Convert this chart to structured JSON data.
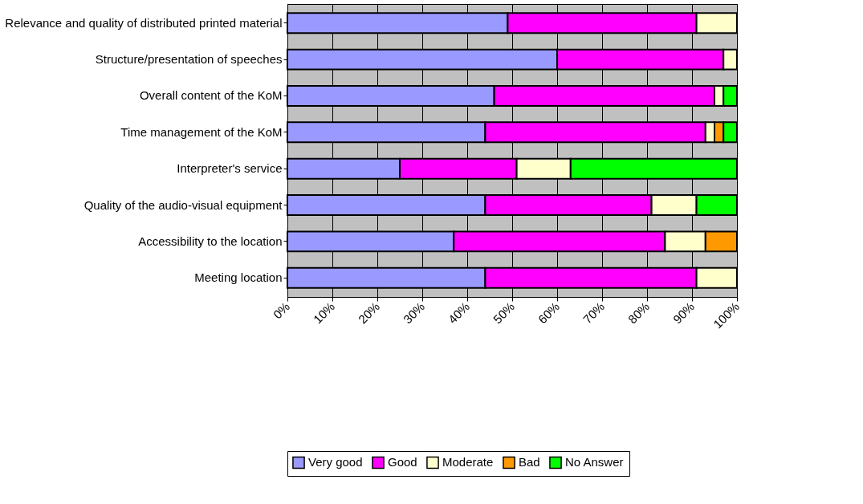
{
  "chart_data": {
    "type": "bar",
    "orientation": "horizontal",
    "stacked": true,
    "categories": [
      "Relevance and quality of distributed printed material",
      "Structure/presentation of speeches",
      "Overall content of the KoM",
      "Time  management of the KoM",
      "Interpreter's service",
      "Quality of the  audio-visual equipment",
      "Accessibility to the location",
      "Meeting location"
    ],
    "series": [
      {
        "name": "Very good",
        "color": "#9999ff",
        "values": [
          49,
          60,
          46,
          44,
          25,
          44,
          37,
          44
        ]
      },
      {
        "name": "Good",
        "color": "#ff00ff",
        "values": [
          42,
          37,
          49,
          49,
          26,
          37,
          47,
          47
        ]
      },
      {
        "name": "Moderate",
        "color": "#ffffcc",
        "values": [
          9,
          3,
          2,
          2,
          12,
          10,
          9,
          9
        ]
      },
      {
        "name": "Bad",
        "color": "#ff9900",
        "values": [
          null,
          null,
          null,
          2,
          null,
          null,
          7,
          null
        ]
      },
      {
        "name": "No Answer",
        "color": "#00ff00",
        "values": [
          null,
          null,
          3,
          3,
          37,
          9,
          null,
          null
        ]
      }
    ],
    "xlim": [
      0,
      100
    ],
    "xticks": [
      {
        "value": 0,
        "label": "0%"
      },
      {
        "value": 10,
        "label": "10%"
      },
      {
        "value": 20,
        "label": "20%"
      },
      {
        "value": 30,
        "label": "30%"
      },
      {
        "value": 40,
        "label": "40%"
      },
      {
        "value": 50,
        "label": "50%"
      },
      {
        "value": 60,
        "label": "60%"
      },
      {
        "value": 70,
        "label": "70%"
      },
      {
        "value": 80,
        "label": "80%"
      },
      {
        "value": 90,
        "label": "90%"
      },
      {
        "value": 100,
        "label": "100%"
      }
    ],
    "grid": "x",
    "legend": "bottom"
  }
}
